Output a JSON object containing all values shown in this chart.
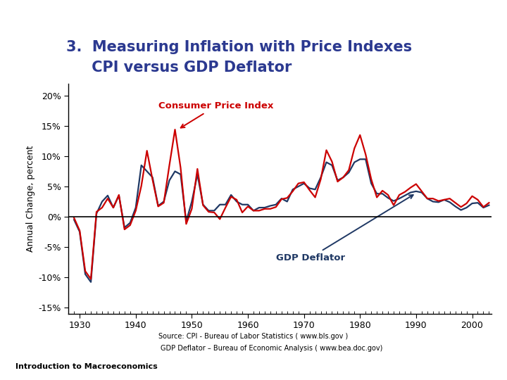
{
  "title_line1": "3.  Measuring Inflation with Price Indexes",
  "title_line2": "     CPI versus GDP Deflator",
  "title_color": "#2B3990",
  "ylabel": "Annual Change, percent",
  "background_color": "#FFFFFF",
  "plot_bg_color": "#FFFFFF",
  "cpi_color": "#CC0000",
  "gdp_color": "#1F3864",
  "cpi_label": "Consumer Price Index",
  "gdp_label": "GDP Deflator",
  "ylim": [
    -16,
    22
  ],
  "yticks": [
    -15,
    -10,
    -5,
    0,
    5,
    10,
    15,
    20
  ],
  "ytick_labels": [
    "-15%",
    "-10%",
    "-5%",
    "0%",
    "5%",
    "10%",
    "15%",
    "20%"
  ],
  "xticks": [
    1930,
    1940,
    1950,
    1960,
    1970,
    1980,
    1990,
    2000
  ],
  "years": [
    1929,
    1930,
    1931,
    1932,
    1933,
    1934,
    1935,
    1936,
    1937,
    1938,
    1939,
    1940,
    1941,
    1942,
    1943,
    1944,
    1945,
    1946,
    1947,
    1948,
    1949,
    1950,
    1951,
    1952,
    1953,
    1954,
    1955,
    1956,
    1957,
    1958,
    1959,
    1960,
    1961,
    1962,
    1963,
    1964,
    1965,
    1966,
    1967,
    1968,
    1969,
    1970,
    1971,
    1972,
    1973,
    1974,
    1975,
    1976,
    1977,
    1978,
    1979,
    1980,
    1981,
    1982,
    1983,
    1984,
    1985,
    1986,
    1987,
    1988,
    1989,
    1990,
    1991,
    1992,
    1993,
    1994,
    1995,
    1996,
    1997,
    1998,
    1999,
    2000,
    2001,
    2002,
    2003
  ],
  "cpi": [
    -0.2,
    -2.3,
    -9.0,
    -10.3,
    0.8,
    1.5,
    3.0,
    1.5,
    3.6,
    -2.1,
    -1.4,
    1.0,
    5.1,
    10.9,
    6.1,
    1.7,
    2.3,
    8.5,
    14.4,
    8.1,
    -1.2,
    1.3,
    7.9,
    1.9,
    0.8,
    0.7,
    -0.4,
    1.5,
    3.3,
    2.8,
    0.7,
    1.7,
    1.0,
    1.0,
    1.3,
    1.3,
    1.6,
    2.9,
    3.1,
    4.2,
    5.5,
    5.7,
    4.4,
    3.2,
    6.2,
    11.0,
    9.1,
    5.8,
    6.5,
    7.7,
    11.3,
    13.5,
    10.3,
    6.2,
    3.2,
    4.3,
    3.6,
    1.9,
    3.6,
    4.1,
    4.8,
    5.4,
    4.2,
    3.0,
    3.0,
    2.6,
    2.8,
    3.0,
    2.3,
    1.6,
    2.2,
    3.4,
    2.8,
    1.6,
    2.3
  ],
  "gdp": [
    -0.5,
    -2.5,
    -9.5,
    -10.8,
    0.5,
    2.5,
    3.5,
    1.5,
    3.5,
    -1.8,
    -1.0,
    1.5,
    8.5,
    7.5,
    6.5,
    1.8,
    2.5,
    6.0,
    7.5,
    7.0,
    -0.8,
    2.5,
    7.0,
    2.0,
    1.0,
    1.0,
    2.0,
    2.0,
    3.6,
    2.5,
    2.0,
    2.0,
    1.0,
    1.5,
    1.5,
    1.8,
    2.0,
    3.0,
    2.5,
    4.5,
    5.0,
    5.5,
    4.7,
    4.5,
    6.5,
    9.0,
    8.5,
    6.0,
    6.5,
    7.3,
    9.0,
    9.5,
    9.5,
    5.5,
    3.8,
    3.8,
    3.1,
    2.6,
    3.0,
    3.5,
    4.0,
    4.2,
    4.0,
    3.0,
    2.5,
    2.4,
    2.8,
    2.4,
    1.7,
    1.1,
    1.5,
    2.2,
    2.3,
    1.5,
    1.9
  ],
  "source_line1": "Source: CPI - Bureau of Labor Statistics ( www.bls.gov )",
  "source_line2": "GDP Deflator – Bureau of Economic Analysis ( www.bea.doc.gov)",
  "footer_left": "Introduction to Macroeconomics"
}
